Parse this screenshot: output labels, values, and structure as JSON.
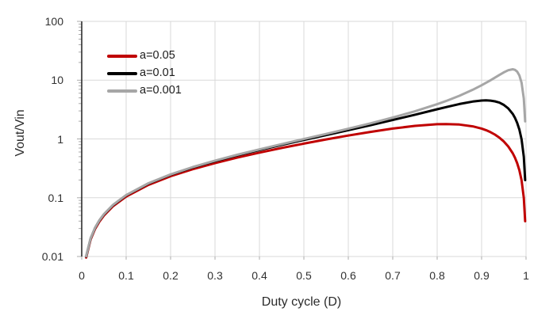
{
  "colors": {
    "background": "#ffffff",
    "grid": "#d9d9d9",
    "axis_line": "#2e2e2e",
    "tick": "#ababab",
    "text": "#313131"
  },
  "chart_data": {
    "type": "line",
    "title": "",
    "xlabel": "Duty cycle (D)",
    "ylabel": "Vout/Vin",
    "x_scale": "linear",
    "y_scale": "log",
    "xlim": [
      0,
      1
    ],
    "ylim": [
      0.01,
      100
    ],
    "grid": true,
    "legend_position": "upper-left-inside",
    "x_ticks": [
      0,
      0.1,
      0.2,
      0.3,
      0.4,
      0.5,
      0.6,
      0.7,
      0.8,
      0.9,
      1
    ],
    "x_tick_labels": [
      "0",
      "0.1",
      "0.2",
      "0.3",
      "0.4",
      "0.5",
      "0.6",
      "0.7",
      "0.8",
      "0.9",
      "1"
    ],
    "y_ticks": [
      0.01,
      0.1,
      1,
      10,
      100
    ],
    "y_tick_labels": [
      "0.01",
      "0.1",
      "1",
      "10",
      "100"
    ],
    "x": [
      0.01,
      0.02,
      0.03,
      0.04,
      0.05,
      0.07,
      0.1,
      0.15,
      0.2,
      0.25,
      0.3,
      0.35,
      0.4,
      0.45,
      0.5,
      0.55,
      0.6,
      0.65,
      0.7,
      0.75,
      0.8,
      0.82,
      0.85,
      0.88,
      0.9,
      0.91,
      0.92,
      0.93,
      0.94,
      0.95,
      0.96,
      0.97,
      0.975,
      0.98,
      0.985,
      0.99,
      0.995,
      0.998
    ],
    "series": [
      {
        "name": "a=0.05",
        "color": "#c00000",
        "values": [
          0.0096,
          0.0194,
          0.0294,
          0.0395,
          0.0499,
          0.0712,
          0.1047,
          0.165,
          0.2319,
          0.3061,
          0.3889,
          0.4815,
          0.5854,
          0.7021,
          0.8333,
          0.9802,
          1.1429,
          1.3188,
          1.5,
          1.6667,
          1.7778,
          1.7913,
          1.7586,
          1.6398,
          1.5,
          1.4096,
          1.305,
          1.1858,
          1.0522,
          0.9048,
          0.7442,
          0.5717,
          0.4815,
          0.3889,
          0.2942,
          0.1976,
          0.0995,
          0.0399
        ]
      },
      {
        "name": "a=0.01",
        "color": "#000000",
        "values": [
          0.01,
          0.0202,
          0.0306,
          0.0412,
          0.0521,
          0.0744,
          0.1098,
          0.1741,
          0.2462,
          0.3275,
          0.42,
          0.526,
          0.6486,
          0.792,
          0.9615,
          1.1647,
          1.4118,
          1.717,
          2.1,
          2.5862,
          3.2,
          3.4811,
          3.9231,
          4.3279,
          4.5,
          4.5249,
          4.4878,
          4.3691,
          4.1471,
          3.8,
          3.3103,
          2.6697,
          2.2941,
          1.8846,
          1.445,
          0.9802,
          0.4963,
          0.1995
        ]
      },
      {
        "name": "a=0.001",
        "color": "#a6a6a6",
        "values": [
          0.0101,
          0.0204,
          0.0309,
          0.0416,
          0.0526,
          0.0752,
          0.111,
          0.1762,
          0.2496,
          0.3327,
          0.4277,
          0.5372,
          0.6648,
          0.8155,
          0.996,
          1.2162,
          1.4907,
          1.8421,
          2.3077,
          2.9528,
          3.9024,
          4.4192,
          5.4255,
          6.8571,
          8.1818,
          9.0,
          9.9459,
          11.0339,
          12.2609,
          13.5714,
          14.7692,
          15.3158,
          15.0,
          14.0,
          12.0612,
          9.0,
          4.8537,
          1.988
        ]
      }
    ]
  }
}
